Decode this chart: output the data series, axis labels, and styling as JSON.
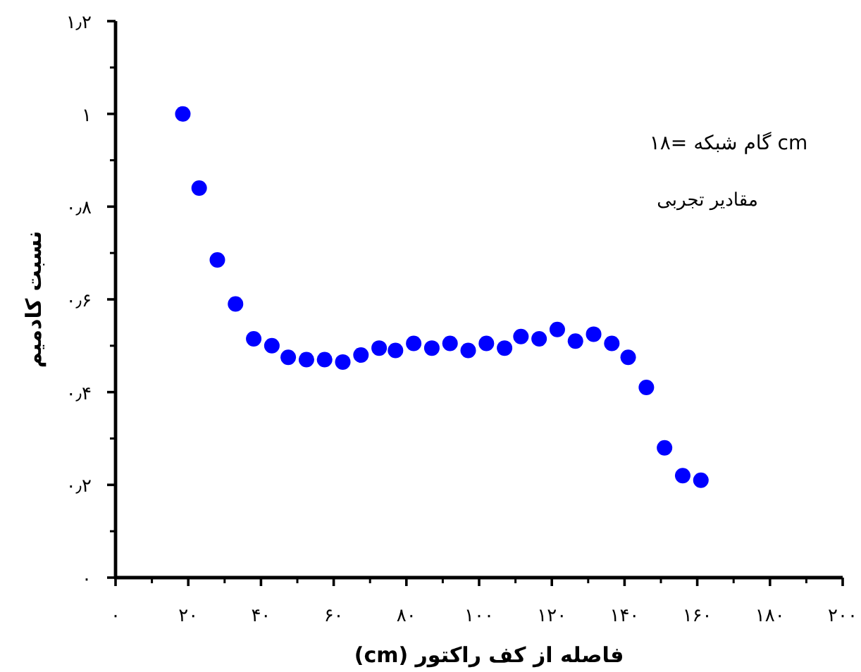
{
  "chart_data": {
    "type": "scatter",
    "xlabel": "فاصله از کف راکتور (cm)",
    "ylabel": "نسبت کادمیم",
    "annotations": [
      "گام شبکه =۱۸ cm",
      "مقادیر تجربی"
    ],
    "x": [
      18.5,
      23,
      28,
      33,
      38,
      43,
      47.5,
      52.5,
      57.5,
      62.5,
      67.5,
      72.5,
      77,
      82,
      87,
      92,
      97,
      102,
      107,
      111.5,
      116.5,
      121.5,
      126.5,
      131.5,
      136.5,
      141,
      146,
      151,
      156,
      161
    ],
    "series": [
      {
        "color": "#0000ff",
        "values": [
          1.0,
          0.84,
          0.685,
          0.59,
          0.515,
          0.5,
          0.475,
          0.47,
          0.47,
          0.465,
          0.48,
          0.495,
          0.49,
          0.505,
          0.495,
          0.505,
          0.49,
          0.505,
          0.495,
          0.52,
          0.515,
          0.535,
          0.51,
          0.525,
          0.505,
          0.475,
          0.41,
          0.28,
          0.22,
          0.21
        ]
      }
    ],
    "xlim": [
      0,
      200
    ],
    "ylim": [
      0,
      1.2
    ],
    "xticks": [
      {
        "value": 0,
        "label": "۰"
      },
      {
        "value": 20,
        "label": "۲۰"
      },
      {
        "value": 40,
        "label": "۴۰"
      },
      {
        "value": 60,
        "label": "۶۰"
      },
      {
        "value": 80,
        "label": "۸۰"
      },
      {
        "value": 100,
        "label": "۱۰۰"
      },
      {
        "value": 120,
        "label": "۱۲۰"
      },
      {
        "value": 140,
        "label": "۱۴۰"
      },
      {
        "value": 160,
        "label": "۱۶۰"
      },
      {
        "value": 180,
        "label": "۱۸۰"
      },
      {
        "value": 200,
        "label": "۲۰۰"
      }
    ],
    "yticks": [
      {
        "value": 0,
        "label": "۰"
      },
      {
        "value": 0.2,
        "label": "۰٫۲"
      },
      {
        "value": 0.4,
        "label": "۰٫۴"
      },
      {
        "value": 0.6,
        "label": "۰٫۶"
      },
      {
        "value": 0.8,
        "label": "۰٫۸"
      },
      {
        "value": 1,
        "label": "۱"
      },
      {
        "value": 1.2,
        "label": "۱٫۲"
      }
    ],
    "marker": "circle"
  }
}
